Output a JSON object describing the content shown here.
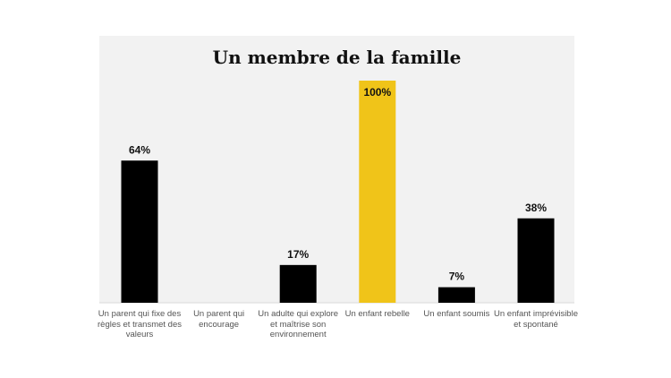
{
  "chart_data": {
    "type": "bar",
    "title": "Un membre de la famille",
    "xlabel": "",
    "ylabel": "",
    "ylim": [
      0,
      100
    ],
    "grid": false,
    "categories": [
      "Un parent qui fixe des règles et transmet des valeurs",
      "Un parent qui encourage",
      "Un adulte qui explore et maîtrise son environnement",
      "Un enfant rebelle",
      "Un enfant soumis",
      "Un enfant imprévisible et spontané"
    ],
    "values": [
      64,
      0,
      17,
      100,
      7,
      38
    ],
    "data_labels": [
      "64%",
      "",
      "17%",
      "100%",
      "7%",
      "38%"
    ],
    "bar_colors": [
      "#000000",
      "#000000",
      "#000000",
      "#f0c419",
      "#000000",
      "#000000"
    ]
  }
}
